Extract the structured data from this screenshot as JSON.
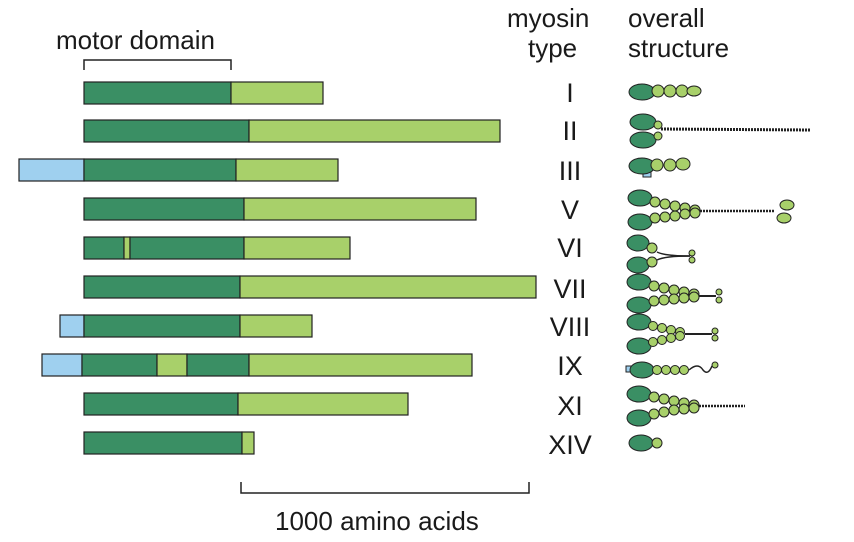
{
  "labels": {
    "motor_domain": "motor domain",
    "myosin_type_line1": "myosin",
    "myosin_type_line2": "type",
    "overall_line1": "overall",
    "overall_line2": "structure",
    "scale": "1000 amino acids"
  },
  "colors": {
    "motor": "#3a8f64",
    "tail": "#a8d06a",
    "n_term": "#9fd0ef",
    "outline": "#222222"
  },
  "myosins": [
    {
      "type": "I"
    },
    {
      "type": "II"
    },
    {
      "type": "III"
    },
    {
      "type": "V"
    },
    {
      "type": "VI"
    },
    {
      "type": "VII"
    },
    {
      "type": "VIII"
    },
    {
      "type": "IX"
    },
    {
      "type": "XI"
    },
    {
      "type": "XIV"
    }
  ]
}
